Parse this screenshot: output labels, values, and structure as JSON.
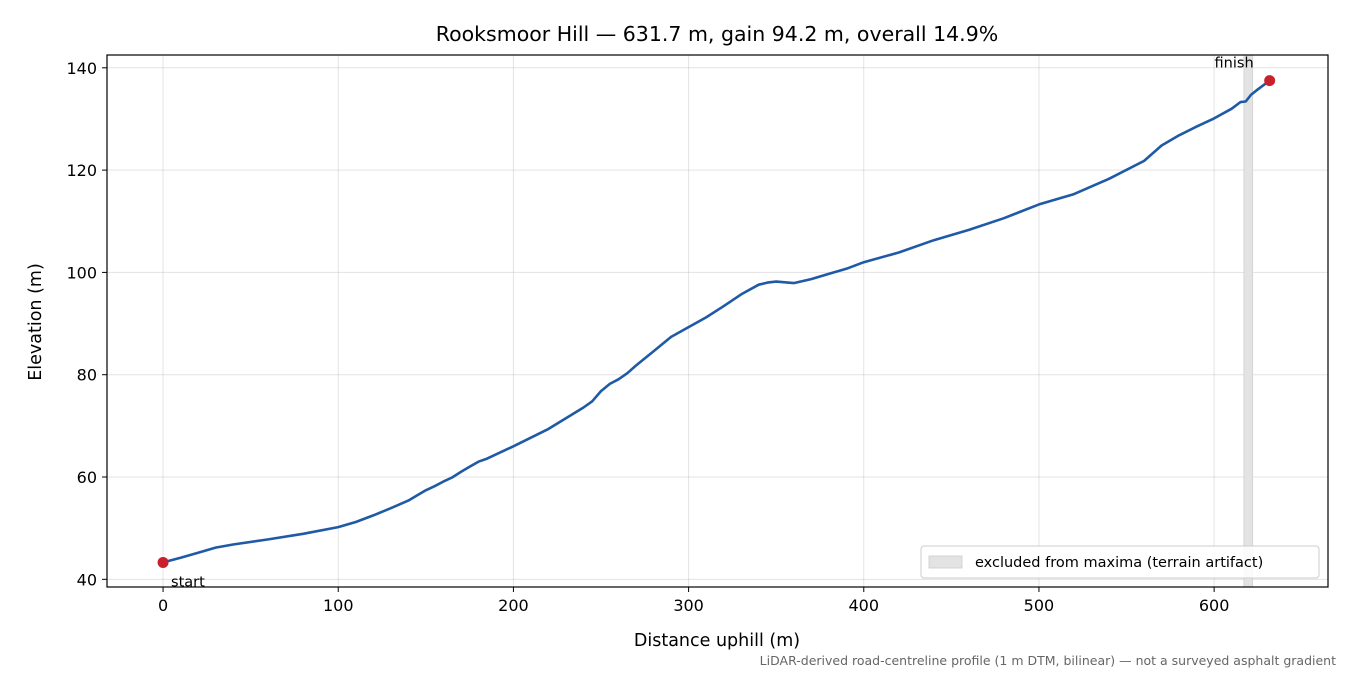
{
  "chart_data": {
    "type": "line",
    "title": "Rooksmoor Hill — 631.7 m, gain 94.2 m, overall 14.9%",
    "xlabel": "Distance uphill (m)",
    "ylabel": "Elevation (m)",
    "xlim": [
      -32,
      665
    ],
    "ylim": [
      38.5,
      142.5
    ],
    "xticks": [
      0,
      100,
      200,
      300,
      400,
      500,
      600
    ],
    "yticks": [
      40,
      60,
      80,
      100,
      120,
      140
    ],
    "grid": true,
    "series": [
      {
        "color": "#1f5aa6",
        "x": [
          0,
          10,
          20,
          30,
          40,
          60,
          80,
          100,
          110,
          120,
          130,
          140,
          145,
          150,
          155,
          160,
          165,
          170,
          175,
          180,
          185,
          200,
          220,
          240,
          245,
          250,
          255,
          260,
          265,
          270,
          280,
          290,
          300,
          310,
          320,
          330,
          340,
          345,
          350,
          360,
          370,
          380,
          390,
          400,
          420,
          440,
          460,
          480,
          500,
          520,
          540,
          560,
          570,
          580,
          590,
          600,
          610,
          615,
          618,
          621,
          625,
          631.7
        ],
        "y": [
          43.3,
          44.2,
          45.2,
          46.2,
          46.8,
          47.8,
          48.9,
          50.2,
          51.2,
          52.5,
          53.9,
          55.4,
          56.4,
          57.4,
          58.2,
          59.1,
          59.9,
          61,
          62,
          63,
          63.6,
          66,
          69.4,
          73.6,
          74.8,
          76.8,
          78.2,
          79.1,
          80.3,
          81.8,
          84.6,
          87.4,
          89.3,
          91.2,
          93.4,
          95.7,
          97.6,
          98,
          98.2,
          97.9,
          98.7,
          99.7,
          100.7,
          102,
          103.9,
          106.3,
          108.3,
          110.6,
          113.3,
          115.3,
          118.3,
          121.8,
          124.8,
          126.8,
          128.5,
          130.1,
          132,
          133.3,
          133.4,
          134.7,
          135.8,
          137.5
        ]
      }
    ],
    "markers": [
      {
        "x": 0,
        "y": 43.3,
        "label": "start",
        "color": "#c8202c"
      },
      {
        "x": 631.7,
        "y": 137.5,
        "label": "finish",
        "color": "#c8202c"
      }
    ],
    "excluded_region": {
      "x0": 617,
      "x1": 622,
      "label": "excluded from maxima (terrain artifact)",
      "color": "#e3e3e3"
    },
    "legend": {
      "placement": "lower-right",
      "entries": [
        "excluded from maxima (terrain artifact)"
      ]
    },
    "footnote": "LiDAR-derived road-centreline profile (1 m DTM, bilinear) — not a surveyed asphalt gradient"
  }
}
